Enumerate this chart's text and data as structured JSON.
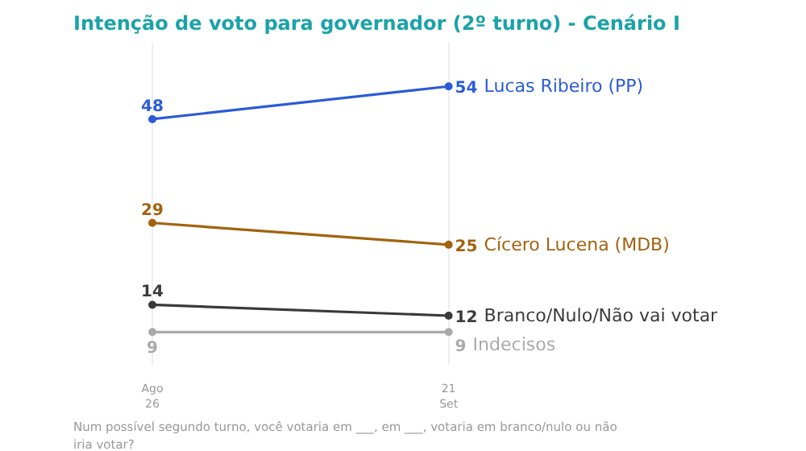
{
  "chart_data": {
    "type": "line",
    "title": "Intenção de voto para governador (2º turno) - Cenário I",
    "categories": [
      "Ago\n26",
      "21\nSet"
    ],
    "series": [
      {
        "name": "Lucas Ribeiro (PP)",
        "color": "#2a5bd7",
        "values": [
          48,
          54
        ]
      },
      {
        "name": "Cícero Lucena (MDB)",
        "color": "#a3620e",
        "values": [
          29,
          25
        ]
      },
      {
        "name": "Branco/Nulo/Não vai votar",
        "color": "#3a3a3a",
        "values": [
          14,
          12
        ]
      },
      {
        "name": "Indecisos",
        "color": "#aaaaaa",
        "values": [
          9,
          9
        ]
      }
    ],
    "ylim": [
      3,
      62
    ],
    "data_labels": true,
    "grid": "x",
    "marker": "circle",
    "line_style": "solid",
    "annotations": [
      "Num possível segundo turno, você votaria em ___, em ___, votaria em branco/nulo ou não iria votar?"
    ]
  }
}
